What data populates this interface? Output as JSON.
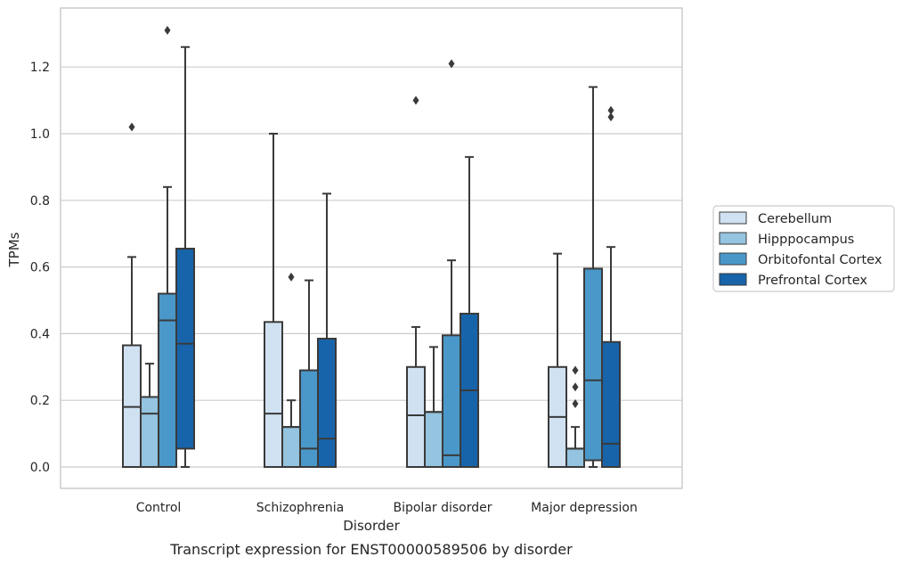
{
  "chart_data": {
    "type": "boxplot",
    "caption": "Transcript expression for ENST00000589506 by disorder",
    "xlabel": "Disorder",
    "ylabel": "TPMs",
    "ylim": [
      -0.065,
      1.375
    ],
    "yticks": [
      0.0,
      0.2,
      0.4,
      0.6,
      0.8,
      1.0,
      1.2
    ],
    "grid": "horizontal",
    "legend_position": "right",
    "categories": [
      "Control",
      "Schizophrenia",
      "Bipolar disorder",
      "Major depression"
    ],
    "series": [
      {
        "name": "Cerebellum",
        "color": "#d0e1f2",
        "boxes": [
          {
            "whislo": 0.0,
            "q1": 0.0,
            "med": 0.18,
            "q3": 0.365,
            "whishi": 0.63,
            "fliers": [
              1.02
            ]
          },
          {
            "whislo": 0.0,
            "q1": 0.0,
            "med": 0.16,
            "q3": 0.435,
            "whishi": 1.0,
            "fliers": []
          },
          {
            "whislo": 0.0,
            "q1": 0.0,
            "med": 0.155,
            "q3": 0.3,
            "whishi": 0.42,
            "fliers": [
              1.1
            ]
          },
          {
            "whislo": 0.0,
            "q1": 0.0,
            "med": 0.15,
            "q3": 0.3,
            "whishi": 0.64,
            "fliers": []
          }
        ]
      },
      {
        "name": "Hipppocampus",
        "color": "#94c4df",
        "boxes": [
          {
            "whislo": 0.0,
            "q1": 0.0,
            "med": 0.16,
            "q3": 0.21,
            "whishi": 0.31,
            "fliers": []
          },
          {
            "whislo": 0.0,
            "q1": 0.0,
            "med": 0.12,
            "q3": 0.12,
            "whishi": 0.2,
            "fliers": [
              0.57
            ]
          },
          {
            "whislo": 0.0,
            "q1": 0.0,
            "med": 0.165,
            "q3": 0.165,
            "whishi": 0.36,
            "fliers": []
          },
          {
            "whislo": 0.0,
            "q1": 0.0,
            "med": 0.055,
            "q3": 0.055,
            "whishi": 0.12,
            "fliers": [
              0.19,
              0.24,
              0.29
            ]
          }
        ]
      },
      {
        "name": "Orbitofontal Cortex",
        "color": "#4a98c9",
        "boxes": [
          {
            "whislo": 0.0,
            "q1": 0.0,
            "med": 0.44,
            "q3": 0.52,
            "whishi": 0.84,
            "fliers": [
              1.31
            ]
          },
          {
            "whislo": 0.0,
            "q1": 0.0,
            "med": 0.055,
            "q3": 0.29,
            "whishi": 0.56,
            "fliers": []
          },
          {
            "whislo": 0.0,
            "q1": 0.0,
            "med": 0.035,
            "q3": 0.395,
            "whishi": 0.62,
            "fliers": [
              1.21
            ]
          },
          {
            "whislo": 0.0,
            "q1": 0.02,
            "med": 0.26,
            "q3": 0.595,
            "whishi": 1.14,
            "fliers": []
          }
        ]
      },
      {
        "name": "Prefrontal Cortex",
        "color": "#1764ab",
        "boxes": [
          {
            "whislo": 0.0,
            "q1": 0.055,
            "med": 0.37,
            "q3": 0.655,
            "whishi": 1.26,
            "fliers": []
          },
          {
            "whislo": 0.0,
            "q1": 0.0,
            "med": 0.085,
            "q3": 0.385,
            "whishi": 0.82,
            "fliers": []
          },
          {
            "whislo": 0.0,
            "q1": 0.0,
            "med": 0.23,
            "q3": 0.46,
            "whishi": 0.93,
            "fliers": []
          },
          {
            "whislo": 0.0,
            "q1": 0.0,
            "med": 0.07,
            "q3": 0.375,
            "whishi": 0.66,
            "fliers": [
              1.05,
              1.07
            ]
          }
        ]
      }
    ]
  }
}
